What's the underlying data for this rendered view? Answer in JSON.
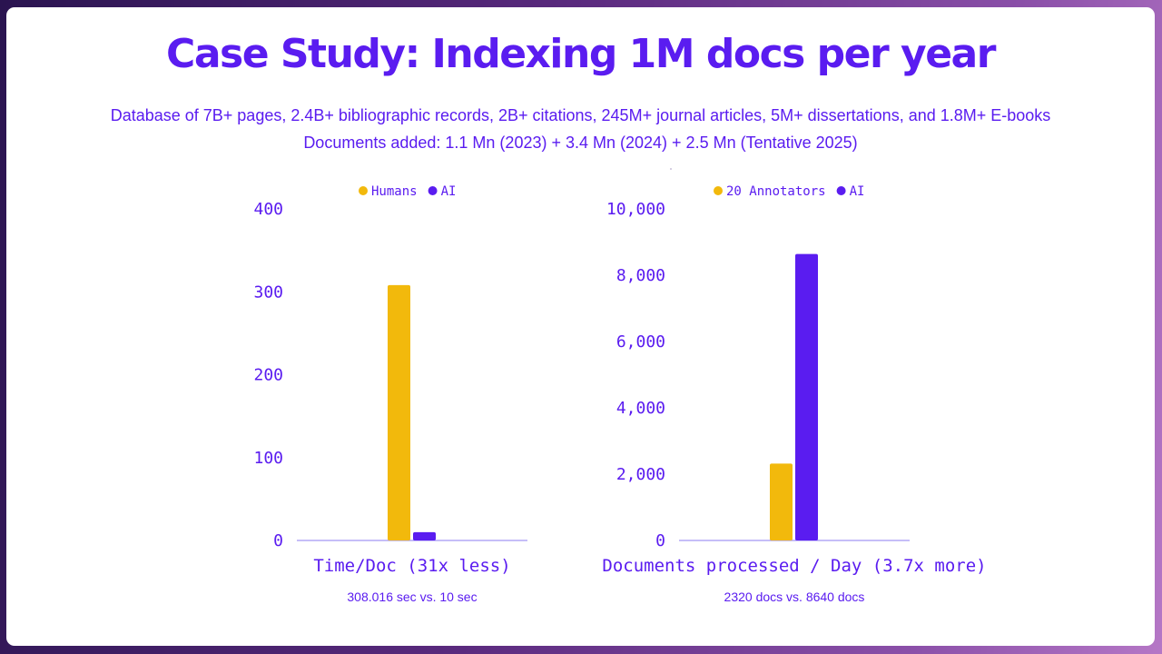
{
  "slide": {
    "title": "Case Study: Indexing 1M docs per year",
    "subtitle_line1": "Database of 7B+ pages, 2.4B+ bibliographic records, 2B+ citations, 245M+ journal articles, 5M+ dissertations, and 1.8M+ E-books",
    "subtitle_line2": "Documents added: 1.1 Mn (2023) + 3.4 Mn (2024) + 2.5 Mn (Tentative 2025)"
  },
  "colors": {
    "primary": "#5a1cf0",
    "humans": "#f2b90c",
    "ai": "#5a1cf0"
  },
  "chart_data": [
    {
      "type": "bar",
      "categories": [
        ""
      ],
      "series": [
        {
          "name": "Humans",
          "values": [
            308.016
          ]
        },
        {
          "name": "AI",
          "values": [
            10
          ]
        }
      ],
      "ylim": [
        0,
        400
      ],
      "yticks": [
        "0",
        "100",
        "200",
        "300",
        "400"
      ],
      "xlabel": "Time/Doc (31x less)",
      "caption": "308.016 sec vs. 10 sec",
      "legend": "top",
      "grid": false
    },
    {
      "type": "bar",
      "categories": [
        ""
      ],
      "series": [
        {
          "name": "20 Annotators",
          "values": [
            2320
          ]
        },
        {
          "name": "AI",
          "values": [
            8640
          ]
        }
      ],
      "ylim": [
        0,
        10000
      ],
      "yticks": [
        "0",
        "2,000",
        "4,000",
        "6,000",
        "8,000",
        "10,000"
      ],
      "xlabel": "Documents processed / Day (3.7x more)",
      "caption": "2320 docs vs. 8640 docs",
      "legend": "top",
      "grid": false
    }
  ]
}
